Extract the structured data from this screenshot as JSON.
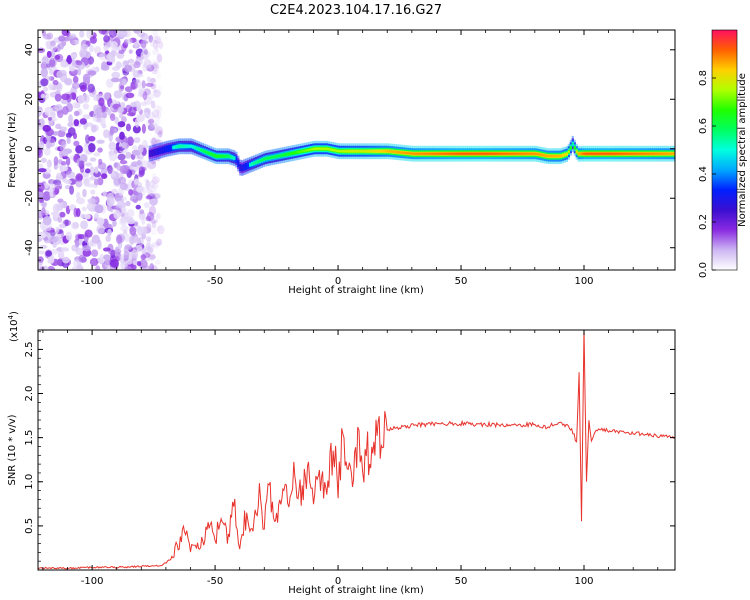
{
  "title": "C2E4.2023.104.17.16.G27",
  "colors": {
    "snr_line": "#e8332c",
    "axis": "#000000",
    "background": "#ffffff"
  },
  "chart_data": [
    {
      "type": "heatmap",
      "xlabel": "Height of straight line (km)",
      "ylabel": "Frequency (Hz)",
      "xlim": [
        -122,
        137
      ],
      "ylim": [
        -49,
        48
      ],
      "xticks": [
        -100,
        -50,
        0,
        50,
        100
      ],
      "xtick_labels": [
        "-100",
        "-50",
        "0",
        "50",
        "100"
      ],
      "yticks": [
        -40,
        -20,
        0,
        20,
        40
      ],
      "ytick_labels": [
        "-40",
        "-20",
        "0",
        "20",
        "40"
      ],
      "colorbar": {
        "label": "Normalized spectral amplitude",
        "range": [
          0,
          1
        ],
        "ticks": [
          0.0,
          0.2,
          0.4,
          0.6,
          0.8
        ],
        "tick_labels": [
          "0.0",
          "0.2",
          "0.4",
          "0.6",
          "0.8"
        ],
        "colormap": [
          "#ffffff",
          "#cdb6f2",
          "#8a2be2",
          "#3a0fd0",
          "#0020ff",
          "#00a8ff",
          "#00ffe0",
          "#00ff60",
          "#20ff00",
          "#b0ff00",
          "#ffd000",
          "#ff6000",
          "#ff1060"
        ]
      },
      "noise_region_x": [
        -122,
        -72
      ],
      "ridge": {
        "x": [
          -77,
          -70,
          -65,
          -60,
          -55,
          -50,
          -45,
          -42,
          -40,
          -35,
          -30,
          -25,
          -20,
          -15,
          -10,
          -5,
          0,
          5,
          10,
          20,
          30,
          40,
          50,
          60,
          70,
          80,
          85,
          90,
          93,
          95,
          97,
          100,
          110,
          120,
          130,
          137
        ],
        "y": [
          -2,
          0,
          1,
          1,
          -1,
          -3,
          -3,
          -4,
          -8,
          -6,
          -4,
          -3,
          -2,
          -1,
          0,
          0,
          -1,
          -1,
          -1,
          -1,
          -2,
          -2,
          -2,
          -2,
          -2,
          -2,
          -3,
          -3,
          -2,
          2,
          -2,
          -2,
          -2,
          -2,
          -2,
          -2
        ],
        "amplitude": [
          0.35,
          0.45,
          0.55,
          0.5,
          0.6,
          0.65,
          0.6,
          0.5,
          0.4,
          0.55,
          0.6,
          0.6,
          0.65,
          0.7,
          0.75,
          0.75,
          0.75,
          0.78,
          0.78,
          0.85,
          0.88,
          0.9,
          0.92,
          0.92,
          0.9,
          0.88,
          0.86,
          0.85,
          0.8,
          0.55,
          0.85,
          0.92,
          0.92,
          0.9,
          0.88,
          0.86
        ]
      }
    },
    {
      "type": "line",
      "xlabel": "Height of straight line (km)",
      "ylabel": "SNR (10 * v/v)",
      "y_multiplier_label": "(x10",
      "y_multiplier_exp": "4",
      "y_multiplier_close": ")",
      "xlim": [
        -122,
        137
      ],
      "ylim": [
        0.0,
        2.72
      ],
      "xticks": [
        -100,
        -50,
        0,
        50,
        100
      ],
      "xtick_labels": [
        "-100",
        "-50",
        "0",
        "50",
        "100"
      ],
      "yticks": [
        0.5,
        1.0,
        1.5,
        2.0,
        2.5
      ],
      "ytick_labels": [
        "0.5",
        "1.0",
        "1.5",
        "2.0",
        "2.5"
      ],
      "series": [
        {
          "x": [
            -122,
            -110,
            -100,
            -90,
            -80,
            -72,
            -68,
            -65,
            -62,
            -60,
            -58,
            -55,
            -52,
            -50,
            -48,
            -45,
            -42,
            -40,
            -38,
            -35,
            -32,
            -30,
            -28,
            -25,
            -22,
            -20,
            -18,
            -15,
            -12,
            -10,
            -8,
            -5,
            -2,
            0,
            2,
            5,
            8,
            10,
            12,
            15,
            18,
            20,
            25,
            30,
            35,
            40,
            50,
            60,
            70,
            80,
            85,
            90,
            95,
            97,
            98,
            99,
            100,
            101,
            102,
            103,
            105,
            110,
            115,
            120,
            125,
            130,
            137
          ],
          "y": [
            0.02,
            0.02,
            0.03,
            0.03,
            0.04,
            0.05,
            0.12,
            0.3,
            0.45,
            0.2,
            0.35,
            0.28,
            0.55,
            0.3,
            0.6,
            0.35,
            0.75,
            0.3,
            0.55,
            0.45,
            0.85,
            0.5,
            0.95,
            0.55,
            1.05,
            0.7,
            1.1,
            0.8,
            1.2,
            0.65,
            1.15,
            0.95,
            1.35,
            1.0,
            1.55,
            1.0,
            1.4,
            1.2,
            1.3,
            1.45,
            1.5,
            1.58,
            1.62,
            1.64,
            1.65,
            1.66,
            1.66,
            1.65,
            1.64,
            1.65,
            1.62,
            1.68,
            1.6,
            1.45,
            2.25,
            0.55,
            2.75,
            1.0,
            1.7,
            1.45,
            1.6,
            1.58,
            1.56,
            1.55,
            1.54,
            1.52,
            1.5
          ]
        }
      ]
    }
  ]
}
